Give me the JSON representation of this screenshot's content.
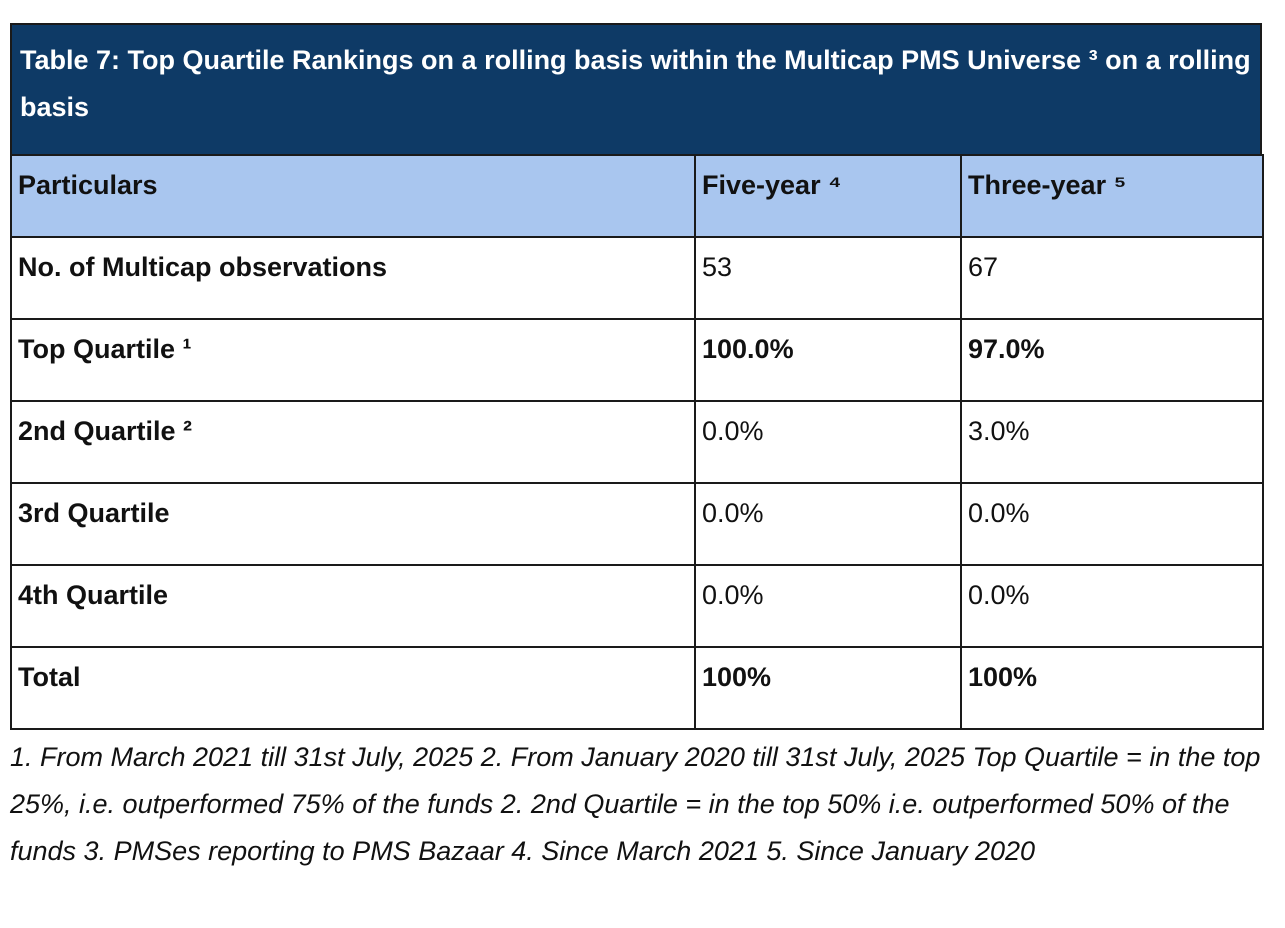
{
  "table": {
    "title": "Table 7: Top Quartile Rankings on a rolling basis within the Multicap PMS Universe ³ on a rolling basis",
    "headers": [
      "Particulars",
      "Five-year ⁴",
      "Three-year ⁵"
    ],
    "rows": [
      {
        "label": "No. of Multicap observations",
        "five_year": "53",
        "three_year": "67"
      },
      {
        "label": "Top Quartile ¹",
        "five_year": "100.0%",
        "three_year": "97.0%"
      },
      {
        "label": "2nd Quartile ²",
        "five_year": "0.0%",
        "three_year": "3.0%"
      },
      {
        "label": "3rd Quartile",
        "five_year": "0.0%",
        "three_year": "0.0%"
      },
      {
        "label": "4th Quartile",
        "five_year": "0.0%",
        "three_year": "0.0%"
      },
      {
        "label": "Total",
        "five_year": "100%",
        "three_year": "100%"
      }
    ]
  },
  "footnote": "1. From March 2021 till 31st July, 2025 2. From January 2020 till 31st July, 2025 Top Quartile = in the top 25%, i.e. outperformed 75% of the funds 2. 2nd Quartile = in the top 50% i.e. outperformed 50% of the funds 3. PMSes reporting to PMS Bazaar 4. Since March 2021 5. Since January 2020",
  "colors": {
    "title_background": "#0e3a66",
    "header_background": "#a9c6ef"
  }
}
